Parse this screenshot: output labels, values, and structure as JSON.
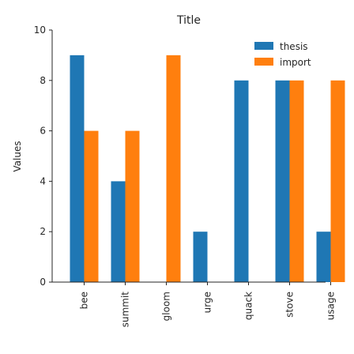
{
  "chart_data": {
    "type": "bar",
    "title": "Title",
    "xlabel": "",
    "ylabel": "Values",
    "ylim": [
      0,
      10
    ],
    "yticks": [
      0,
      2,
      4,
      6,
      8,
      10
    ],
    "grid": false,
    "legend_position": "top-right",
    "categories": [
      "bee",
      "summit",
      "gloom",
      "urge",
      "quack",
      "stove",
      "usage"
    ],
    "series": [
      {
        "name": "thesis",
        "color": "#1f77b4",
        "values": [
          9,
          4,
          0,
          2,
          8,
          8,
          2
        ]
      },
      {
        "name": "import",
        "color": "#ff7f0e",
        "values": [
          6,
          6,
          9,
          0,
          0,
          8,
          8
        ]
      }
    ]
  }
}
